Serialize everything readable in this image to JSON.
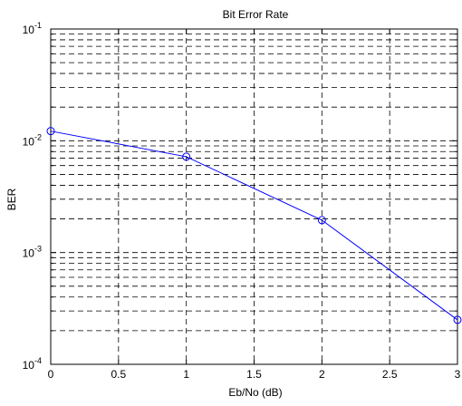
{
  "chart_data": {
    "type": "line",
    "title": "Bit Error Rate",
    "xlabel": "Eb/No (dB)",
    "ylabel": "BER",
    "x": [
      0,
      1,
      2,
      3
    ],
    "series": [
      {
        "values": [
          0.0122,
          0.0072,
          0.00195,
          0.00025
        ],
        "color": "#0000ff",
        "marker": "circle"
      }
    ],
    "xlim": [
      0,
      3
    ],
    "ylim": [
      0.0001,
      0.1
    ],
    "yscale": "log",
    "grid": true,
    "x_ticks": [
      {
        "value": 0,
        "label": "0"
      },
      {
        "value": 0.5,
        "label": "0.5"
      },
      {
        "value": 1,
        "label": "1"
      },
      {
        "value": 1.5,
        "label": "1.5"
      },
      {
        "value": 2,
        "label": "2"
      },
      {
        "value": 2.5,
        "label": "2.5"
      },
      {
        "value": 3,
        "label": "3"
      }
    ],
    "y_ticks": [
      {
        "value": 0.0001,
        "base": "10",
        "exp": "-4"
      },
      {
        "value": 0.001,
        "base": "10",
        "exp": "-3"
      },
      {
        "value": 0.01,
        "base": "10",
        "exp": "-2"
      },
      {
        "value": 0.1,
        "base": "10",
        "exp": "-1"
      }
    ]
  }
}
